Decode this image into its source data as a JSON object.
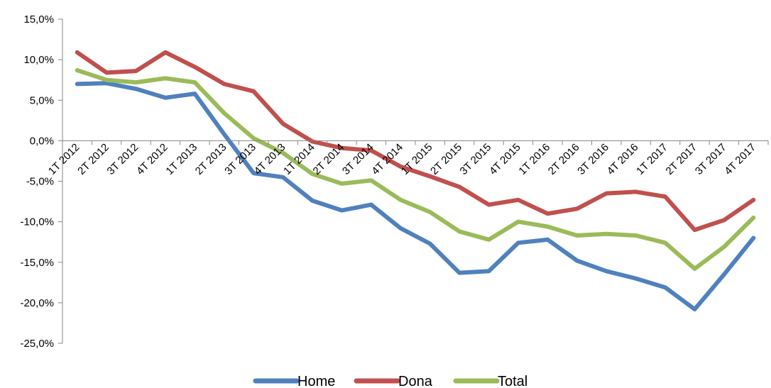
{
  "chart_data": {
    "type": "line",
    "title": "",
    "xlabel": "",
    "ylabel": "",
    "ylim": [
      -25,
      15
    ],
    "yticks": [
      15,
      10,
      5,
      0,
      -5,
      -10,
      -15,
      -20,
      -25
    ],
    "ytick_labels": [
      "15,0%",
      "10,0%",
      "5,0%",
      "0,0%",
      "-5,0%",
      "-10,0%",
      "-15,0%",
      "-20,0%",
      "-25,0%"
    ],
    "categories": [
      "1T 2012",
      "2T 2012",
      "3T 2012",
      "4T 2012",
      "1T 2013",
      "2T 2013",
      "3T 2013",
      "4T 2013",
      "1T 2014",
      "2T 2014",
      "3T 2014",
      "4T 2014",
      "1T 2015",
      "2T 2015",
      "3T 2015",
      "4T 2015",
      "1T 2016",
      "2T 2016",
      "3T 2016",
      "4T 2016",
      "1T 2017",
      "2T 2017",
      "3T 2017",
      "4T 2017"
    ],
    "grid": false,
    "legend_position": "bottom",
    "series": [
      {
        "name": "Home",
        "color": "#4f81bd",
        "values": [
          7.0,
          7.1,
          6.4,
          5.3,
          5.8,
          0.8,
          -4.0,
          -4.5,
          -7.4,
          -8.6,
          -7.9,
          -10.8,
          -12.7,
          -16.3,
          -16.1,
          -12.6,
          -12.2,
          -14.8,
          -16.1,
          -17.0,
          -18.1,
          -20.8,
          -16.5,
          -12.0
        ]
      },
      {
        "name": "Dona",
        "color": "#c0504d",
        "values": [
          10.9,
          8.4,
          8.6,
          10.9,
          9.1,
          7.0,
          6.1,
          2.1,
          -0.1,
          -0.9,
          -1.2,
          -3.2,
          -4.4,
          -5.7,
          -7.9,
          -7.3,
          -9.0,
          -8.4,
          -6.5,
          -6.3,
          -6.9,
          -11.0,
          -9.8,
          -7.3
        ]
      },
      {
        "name": "Total",
        "color": "#9bbb59",
        "values": [
          8.7,
          7.5,
          7.2,
          7.7,
          7.2,
          3.4,
          0.3,
          -1.5,
          -4.1,
          -5.3,
          -4.9,
          -7.3,
          -8.8,
          -11.2,
          -12.2,
          -10.0,
          -10.6,
          -11.7,
          -11.5,
          -11.7,
          -12.6,
          -15.8,
          -13.1,
          -9.5
        ]
      }
    ]
  }
}
